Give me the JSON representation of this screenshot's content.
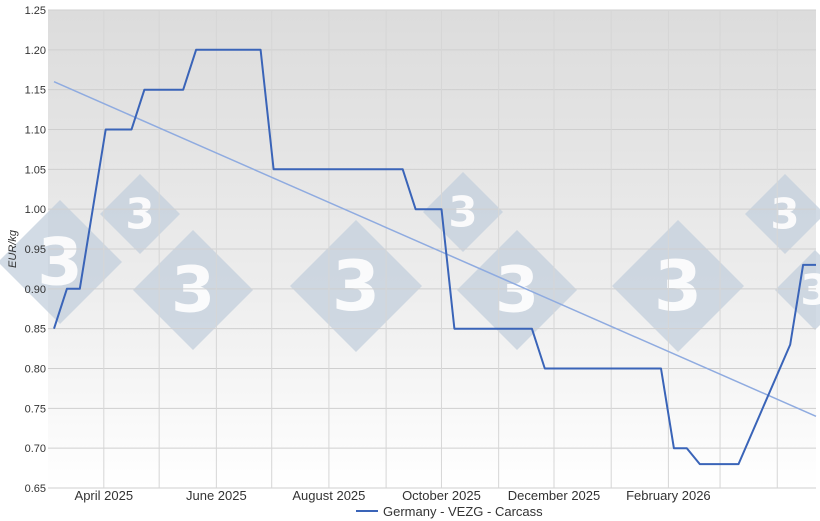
{
  "chart_data": {
    "type": "line",
    "ylabel": "EUR/kg",
    "ylim": [
      0.65,
      1.25
    ],
    "y_ticks": [
      "0.65",
      "0.70",
      "0.75",
      "0.80",
      "0.85",
      "0.90",
      "0.95",
      "1.00",
      "1.05",
      "1.10",
      "1.15",
      "1.20",
      "1.25"
    ],
    "x_ticks": [
      {
        "label": "April 2025",
        "date": "2025-04-01"
      },
      {
        "label": "June 2025",
        "date": "2025-06-01"
      },
      {
        "label": "August 2025",
        "date": "2025-08-01"
      },
      {
        "label": "October 2025",
        "date": "2025-10-01"
      },
      {
        "label": "December 2025",
        "date": "2025-12-01"
      },
      {
        "label": "February 2026",
        "date": "2026-02-01"
      }
    ],
    "grid": true,
    "legend_position": "bottom",
    "series": [
      {
        "name": "Germany - VEZG - Carcass",
        "color": "#3a64b8",
        "points": [
          [
            "2025-03-05",
            0.85
          ],
          [
            "2025-03-12",
            0.9
          ],
          [
            "2025-03-19",
            0.9
          ],
          [
            "2025-04-02",
            1.1
          ],
          [
            "2025-04-16",
            1.1
          ],
          [
            "2025-04-23",
            1.15
          ],
          [
            "2025-05-14",
            1.15
          ],
          [
            "2025-05-21",
            1.2
          ],
          [
            "2025-06-25",
            1.2
          ],
          [
            "2025-07-02",
            1.05
          ],
          [
            "2025-09-10",
            1.05
          ],
          [
            "2025-09-17",
            1.0
          ],
          [
            "2025-10-01",
            1.0
          ],
          [
            "2025-10-08",
            0.85
          ],
          [
            "2025-11-19",
            0.85
          ],
          [
            "2025-11-26",
            0.8
          ],
          [
            "2026-01-28",
            0.8
          ],
          [
            "2026-02-04",
            0.7
          ],
          [
            "2026-02-11",
            0.7
          ],
          [
            "2026-02-18",
            0.68
          ],
          [
            "2026-03-11",
            0.68
          ],
          [
            "2026-04-08",
            0.83
          ],
          [
            "2026-04-15",
            0.93
          ],
          [
            "2026-04-22",
            0.93
          ]
        ]
      }
    ],
    "trendline": {
      "color": "#8fabe0",
      "points": [
        [
          "2025-03-05",
          1.16
        ],
        [
          "2026-04-22",
          0.74
        ]
      ]
    }
  },
  "legend": {
    "label": "Germany - VEZG - Carcass"
  },
  "watermark": {
    "text": "3"
  }
}
